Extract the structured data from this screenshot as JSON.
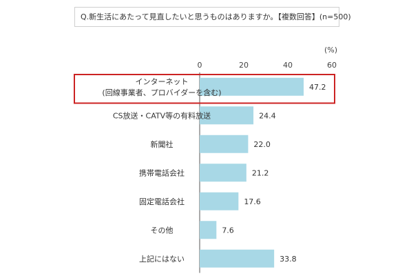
{
  "question": "Q.新生活にあたって見直したいと思うものはありますか。【複数回答】(n=500)",
  "chart_data": {
    "type": "bar",
    "orientation": "horizontal",
    "unit": "(%)",
    "categories": [
      [
        "インターネット",
        "(回線事業者、プロバイダーを含む)"
      ],
      [
        "CS放送・CATV等の有料放送"
      ],
      [
        "新聞社"
      ],
      [
        "携帯電話会社"
      ],
      [
        "固定電話会社"
      ],
      [
        "その他"
      ],
      [
        "上記にはない"
      ]
    ],
    "values": [
      47.2,
      24.4,
      22.0,
      21.2,
      17.6,
      7.6,
      33.8
    ],
    "value_labels": [
      "47.2",
      "24.4",
      "22.0",
      "21.2",
      "17.6",
      "7.6",
      "33.8"
    ],
    "xlim": [
      0,
      60
    ],
    "xticks": [
      "0",
      "20",
      "40",
      "60"
    ],
    "highlight_index": 0,
    "colors": {
      "bar": "#a8d8e6",
      "highlight_border": "#cc2222",
      "axis": "#555555"
    }
  }
}
